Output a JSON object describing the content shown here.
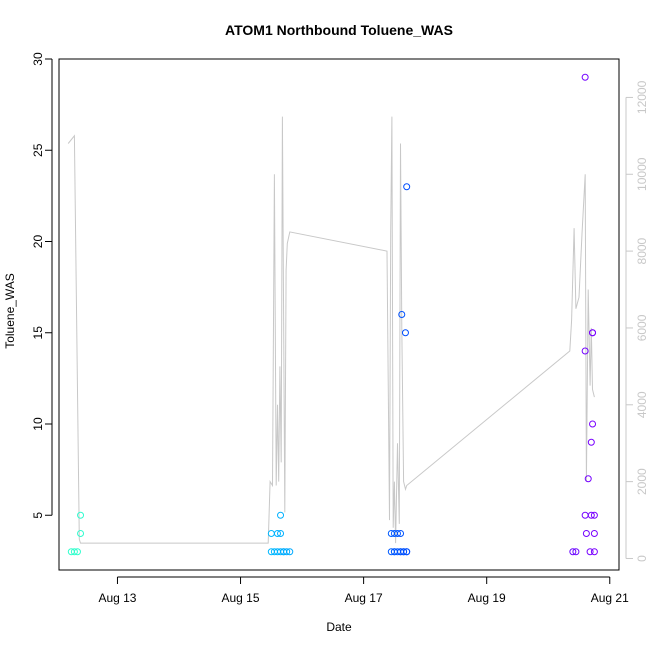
{
  "chart_data": {
    "type": "scatter",
    "title": "ATOM1 Northbound Toluene_WAS",
    "xlabel": "Date",
    "ylabel": "Toluene_WAS",
    "x_units": "days in August",
    "xlim": [
      12.05,
      21.15
    ],
    "ylim": [
      2.0,
      30.0
    ],
    "y2lim": [
      -300,
      13000
    ],
    "x_ticks": [
      13,
      15,
      17,
      19,
      21
    ],
    "x_tick_labels": [
      "Aug 13",
      "Aug 15",
      "Aug 17",
      "Aug 19",
      "Aug 21"
    ],
    "y_ticks": [
      5,
      10,
      15,
      20,
      25,
      30
    ],
    "y_tick_labels": [
      "5",
      "10",
      "15",
      "20",
      "25",
      "30"
    ],
    "y2_ticks": [
      0,
      2000,
      4000,
      6000,
      8000,
      10000,
      12000
    ],
    "y2_tick_labels": [
      "0",
      "2000",
      "4000",
      "6000",
      "8000",
      "10000",
      "12000"
    ],
    "grid": false,
    "colors": {
      "line": "#c8c8c8",
      "right_axis": "#c8c8c8",
      "point_gradient": [
        "#33ffcc",
        "#00ccff",
        "#0044ff",
        "#7a00ff"
      ]
    },
    "series": [
      {
        "kind": "points",
        "axis": "left",
        "x": [
          12.25,
          12.3,
          12.35,
          12.4,
          12.4,
          15.5,
          15.5,
          15.55,
          15.6,
          15.6,
          15.65,
          15.65,
          15.65,
          15.7,
          15.7,
          15.75,
          15.8,
          17.45,
          17.45,
          17.5,
          17.5,
          17.5,
          17.55,
          17.55,
          17.6,
          17.6,
          17.6,
          17.62,
          17.65,
          17.65,
          17.68,
          17.7,
          17.7,
          17.7,
          20.4,
          20.45,
          20.6,
          20.6,
          20.6,
          20.62,
          20.65,
          20.68,
          20.7,
          20.7,
          20.72,
          20.72,
          20.72,
          20.75,
          20.75,
          20.75
        ],
        "y": [
          3,
          3,
          3,
          4,
          5,
          4,
          3,
          3,
          4,
          3,
          5,
          4,
          3,
          3,
          3,
          3,
          3,
          4,
          3,
          4,
          3,
          3,
          4,
          3,
          4,
          3,
          3,
          16,
          3,
          3,
          15,
          23,
          3,
          3,
          3,
          3,
          29,
          14,
          5,
          4,
          7,
          3,
          9,
          5,
          10,
          15,
          15,
          4,
          3,
          5
        ]
      },
      {
        "kind": "line",
        "axis": "right",
        "x": [
          12.2,
          12.3,
          12.38,
          12.4,
          15.45,
          15.48,
          15.52,
          15.55,
          15.58,
          15.6,
          15.62,
          15.64,
          15.66,
          15.68,
          15.72,
          15.74,
          15.76,
          15.8,
          17.38,
          17.42,
          17.44,
          17.46,
          17.48,
          17.5,
          17.52,
          17.55,
          17.58,
          17.6,
          17.62,
          17.65,
          17.68,
          17.7,
          20.35,
          20.38,
          20.42,
          20.45,
          20.5,
          20.55,
          20.6,
          20.62,
          20.65,
          20.68,
          20.7,
          20.72,
          20.75
        ],
        "y": [
          10800,
          11000,
          500,
          400,
          400,
          2000,
          1900,
          10000,
          1900,
          4000,
          2000,
          5000,
          2500,
          11500,
          1200,
          7500,
          8200,
          8500,
          8000,
          1000,
          8500,
          11500,
          800,
          2000,
          400,
          3000,
          900,
          10800,
          6000,
          2000,
          1800,
          1900,
          5400,
          6200,
          8600,
          6500,
          6800,
          8500,
          10000,
          2000,
          7000,
          4500,
          6000,
          4400,
          4200
        ]
      }
    ]
  }
}
